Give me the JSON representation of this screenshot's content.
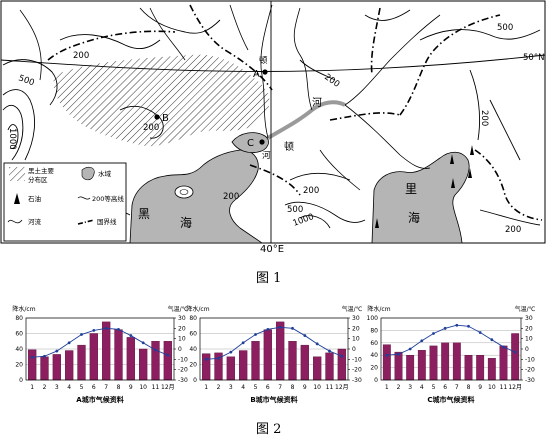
{
  "map": {
    "latitude_label": "50°N",
    "longitude_label": "40°E",
    "seas": {
      "black_sea": [
        "黑",
        "海"
      ],
      "caspian_sea": [
        "里",
        "海"
      ]
    },
    "river_label": [
      "河",
      "顿"
    ],
    "river_label_upper": "河",
    "river_label_lower": "顿",
    "cities": {
      "a": "A",
      "b": "B",
      "c": "C"
    },
    "contour_labels": [
      "200",
      "500",
      "1000",
      "200",
      "200",
      "500",
      "200",
      "200",
      "200",
      "500",
      "1000",
      "200"
    ],
    "legend": {
      "chernozem": [
        "黑土主要",
        "分布区"
      ],
      "water": "水域",
      "oil": "石油",
      "contour": "200等高线",
      "river": "河流",
      "border": "国界线"
    },
    "caption": "图 1"
  },
  "charts_caption": "图 2",
  "chart_data": [
    {
      "type": "bar",
      "title": "A城市气候资料",
      "ylabel": "降水/cm",
      "y2label": "气温/℃",
      "categories": [
        "1",
        "2",
        "3",
        "4",
        "5",
        "6",
        "7",
        "8",
        "9",
        "10",
        "11",
        "12"
      ],
      "xunit": "月",
      "ylim": [
        0,
        80
      ],
      "yticks": [
        0,
        20,
        40,
        60,
        80
      ],
      "y2lim": [
        -30,
        30
      ],
      "y2ticks": [
        -30,
        -20,
        -10,
        0,
        10,
        20,
        30
      ],
      "series": [
        {
          "type": "bar",
          "axis": "left",
          "values": [
            39,
            30,
            33,
            38,
            45,
            60,
            75,
            65,
            55,
            40,
            50,
            50
          ]
        },
        {
          "type": "line",
          "axis": "right",
          "values": [
            -8,
            -7,
            -2,
            6,
            14,
            18,
            20,
            19,
            13,
            6,
            -1,
            -6
          ]
        }
      ]
    },
    {
      "type": "bar",
      "title": "B城市气候资料",
      "ylabel": "降水/cm",
      "y2label": "气温/℃",
      "categories": [
        "1",
        "2",
        "3",
        "4",
        "5",
        "6",
        "7",
        "8",
        "9",
        "10",
        "11",
        "12"
      ],
      "xunit": "月",
      "ylim": [
        0,
        80
      ],
      "yticks": [
        0,
        20,
        40,
        60,
        80
      ],
      "y2lim": [
        -30,
        30
      ],
      "y2ticks": [
        -30,
        -20,
        -10,
        0,
        10,
        20,
        30
      ],
      "series": [
        {
          "type": "bar",
          "axis": "left",
          "values": [
            34,
            35,
            30,
            38,
            50,
            65,
            75,
            50,
            45,
            30,
            35,
            40
          ]
        },
        {
          "type": "line",
          "axis": "right",
          "values": [
            -10,
            -9,
            -3,
            6,
            14,
            19,
            21,
            20,
            13,
            5,
            -2,
            -7
          ]
        }
      ]
    },
    {
      "type": "bar",
      "title": "C城市气候资料",
      "ylabel": "降水/cm",
      "y2label": "气温/℃",
      "categories": [
        "1",
        "2",
        "3",
        "4",
        "5",
        "6",
        "7",
        "8",
        "9",
        "10",
        "11",
        "12"
      ],
      "xunit": "月",
      "ylim": [
        0,
        100
      ],
      "yticks": [
        0,
        20,
        40,
        60,
        80,
        100
      ],
      "y2lim": [
        -30,
        30
      ],
      "y2ticks": [
        -30,
        -20,
        -10,
        0,
        10,
        20,
        30
      ],
      "series": [
        {
          "type": "bar",
          "axis": "left",
          "values": [
            57,
            45,
            40,
            48,
            55,
            60,
            60,
            40,
            40,
            35,
            55,
            75
          ]
        },
        {
          "type": "line",
          "axis": "right",
          "values": [
            -6,
            -5,
            0,
            8,
            15,
            20,
            23,
            22,
            16,
            9,
            2,
            -3
          ]
        }
      ]
    }
  ]
}
